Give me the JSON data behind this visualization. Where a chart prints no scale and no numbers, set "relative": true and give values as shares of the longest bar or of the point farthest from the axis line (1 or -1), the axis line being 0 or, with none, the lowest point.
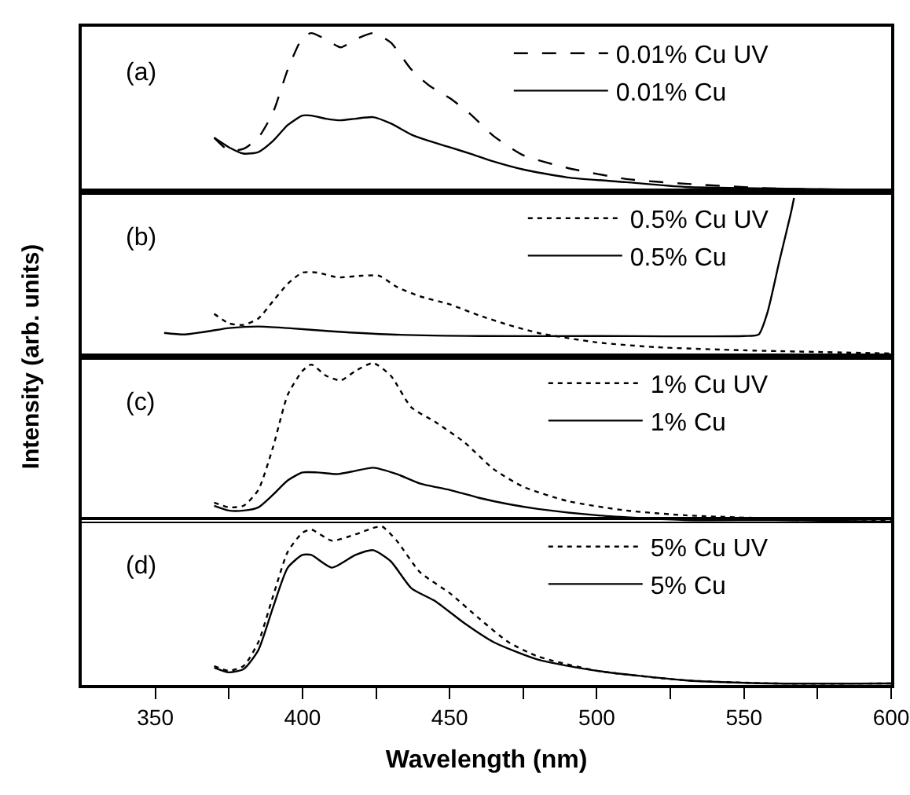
{
  "chart_data": [
    {
      "type": "line",
      "relative": true,
      "ylabel": "Intensity (arb. units)",
      "annotations": [
        "(a)"
      ],
      "xlim": [
        325,
        600
      ],
      "tick_labels": false,
      "legend": "top right",
      "x": [
        370,
        375,
        380,
        385,
        390,
        395,
        400,
        403,
        408,
        413,
        418,
        424,
        430,
        437,
        443,
        450,
        457,
        465,
        475,
        490,
        510,
        530,
        560,
        600
      ],
      "series": [
        {
          "name": "0.01% Cu UV",
          "color": "#000000",
          "line_style": "dashed",
          "values": [
            0.34,
            0.26,
            0.27,
            0.34,
            0.5,
            0.77,
            0.97,
            1.0,
            0.96,
            0.91,
            0.96,
            1.0,
            0.94,
            0.77,
            0.67,
            0.59,
            0.49,
            0.35,
            0.23,
            0.15,
            0.08,
            0.05,
            0.02,
            0.01
          ]
        },
        {
          "name": "0.01% Cu",
          "color": "#000000",
          "line_style": "solid",
          "values": [
            0.34,
            0.28,
            0.24,
            0.25,
            0.32,
            0.42,
            0.48,
            0.48,
            0.46,
            0.45,
            0.46,
            0.47,
            0.43,
            0.36,
            0.32,
            0.28,
            0.24,
            0.19,
            0.14,
            0.09,
            0.06,
            0.03,
            0.02,
            0.01
          ]
        }
      ]
    },
    {
      "type": "line",
      "relative": true,
      "annotations": [
        "(b)"
      ],
      "xlim": [
        325,
        600
      ],
      "tick_labels": false,
      "legend": "top right",
      "series": [
        {
          "name": "0.5% Cu UV",
          "color": "#000000",
          "line_style": "dotted",
          "x": [
            370,
            375,
            380,
            385,
            390,
            395,
            400,
            405,
            412,
            420,
            426,
            432,
            440,
            450,
            460,
            470,
            480,
            500,
            520,
            550,
            600
          ],
          "values": [
            0.27,
            0.21,
            0.2,
            0.24,
            0.35,
            0.46,
            0.53,
            0.53,
            0.5,
            0.51,
            0.51,
            0.44,
            0.38,
            0.33,
            0.26,
            0.2,
            0.15,
            0.09,
            0.06,
            0.04,
            0.02
          ]
        },
        {
          "name": "0.5% Cu",
          "color": "#000000",
          "line_style": "solid",
          "x": [
            353,
            360,
            368,
            375,
            385,
            395,
            410,
            430,
            460,
            500,
            550,
            555,
            558,
            562,
            566,
            567
          ],
          "values": [
            0.15,
            0.14,
            0.16,
            0.18,
            0.19,
            0.18,
            0.16,
            0.14,
            0.13,
            0.13,
            0.13,
            0.14,
            0.28,
            0.6,
            0.91,
            1.0
          ]
        }
      ]
    },
    {
      "type": "line",
      "relative": true,
      "annotations": [
        "(c)"
      ],
      "xlim": [
        325,
        600
      ],
      "tick_labels": false,
      "legend": "top right",
      "series": [
        {
          "name": "1% Cu UV",
          "color": "#000000",
          "line_style": "dotted",
          "x": [
            370,
            375,
            380,
            385,
            390,
            395,
            400,
            403,
            408,
            413,
            418,
            424,
            430,
            437,
            445,
            455,
            465,
            475,
            490,
            510,
            530,
            560,
            600
          ],
          "values": [
            0.12,
            0.09,
            0.1,
            0.2,
            0.47,
            0.8,
            0.95,
            0.99,
            0.92,
            0.89,
            0.95,
            1.0,
            0.92,
            0.72,
            0.63,
            0.5,
            0.33,
            0.22,
            0.13,
            0.07,
            0.04,
            0.02,
            0.01
          ]
        },
        {
          "name": "1% Cu",
          "color": "#000000",
          "line_style": "solid",
          "x": [
            370,
            375,
            380,
            385,
            390,
            395,
            400,
            405,
            412,
            418,
            424,
            432,
            440,
            450,
            460,
            470,
            480,
            500,
            530,
            560,
            600
          ],
          "values": [
            0.1,
            0.07,
            0.07,
            0.09,
            0.17,
            0.26,
            0.31,
            0.31,
            0.3,
            0.32,
            0.34,
            0.3,
            0.24,
            0.2,
            0.15,
            0.11,
            0.08,
            0.04,
            0.01,
            0.01,
            0.0
          ]
        }
      ]
    },
    {
      "type": "line",
      "relative": true,
      "annotations": [
        "(d)"
      ],
      "xlabel": "Wavelength (nm)",
      "xlim": [
        325,
        600
      ],
      "tick_labels": "x",
      "legend": "top right",
      "xticks": [
        350,
        {
          "value": 375,
          "label": null
        },
        400,
        {
          "value": 425,
          "label": null
        },
        450,
        {
          "value": 475,
          "label": null
        },
        500,
        {
          "value": 525,
          "label": null
        },
        550,
        {
          "value": 575,
          "label": null
        },
        600
      ],
      "series": [
        {
          "name": "5% Cu UV",
          "color": "#000000",
          "line_style": "dotted",
          "x": [
            370,
            375,
            380,
            385,
            390,
            395,
            400,
            403,
            410,
            418,
            424,
            427,
            432,
            440,
            450,
            460,
            470,
            480,
            500,
            530,
            560,
            600
          ],
          "values": [
            0.12,
            0.09,
            0.12,
            0.27,
            0.56,
            0.84,
            0.96,
            0.98,
            0.91,
            0.95,
            0.99,
            1.0,
            0.91,
            0.71,
            0.58,
            0.42,
            0.27,
            0.18,
            0.09,
            0.03,
            0.01,
            0.01
          ]
        },
        {
          "name": "5% Cu",
          "color": "#000000",
          "line_style": "solid",
          "x": [
            370,
            375,
            380,
            385,
            390,
            395,
            400,
            403,
            410,
            418,
            424,
            430,
            437,
            445,
            455,
            465,
            480,
            500,
            530,
            560,
            600
          ],
          "values": [
            0.11,
            0.08,
            0.1,
            0.22,
            0.49,
            0.74,
            0.82,
            0.82,
            0.74,
            0.82,
            0.85,
            0.78,
            0.61,
            0.53,
            0.39,
            0.27,
            0.16,
            0.09,
            0.03,
            0.01,
            0.01
          ]
        }
      ]
    }
  ]
}
